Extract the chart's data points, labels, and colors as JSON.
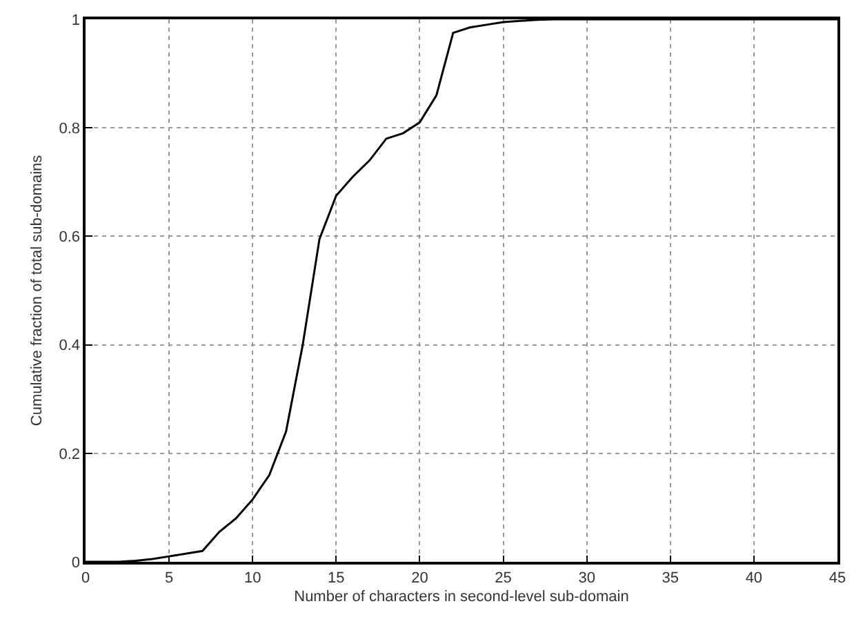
{
  "chart_data": {
    "type": "line",
    "xlabel": "Number of characters in second-level sub-domain",
    "ylabel": "Cumulative fraction of total sub-domains",
    "x": [
      0,
      1,
      2,
      3,
      4,
      5,
      6,
      7,
      8,
      9,
      10,
      11,
      12,
      13,
      14,
      15,
      16,
      17,
      18,
      19,
      20,
      21,
      22,
      23,
      24,
      25,
      26,
      27,
      28,
      30,
      35,
      40,
      45
    ],
    "series": [
      {
        "color": "#000000",
        "values": [
          0,
          0,
          0,
          0.002,
          0.005,
          0.01,
          0.015,
          0.02,
          0.055,
          0.08,
          0.115,
          0.16,
          0.24,
          0.4,
          0.595,
          0.675,
          0.71,
          0.74,
          0.78,
          0.79,
          0.81,
          0.86,
          0.975,
          0.985,
          0.99,
          0.995,
          0.997,
          0.999,
          1,
          1,
          1,
          1,
          1
        ]
      }
    ],
    "xlim": [
      0,
      45
    ],
    "xticks": [
      0,
      5,
      10,
      15,
      20,
      25,
      30,
      35,
      40,
      45
    ],
    "ylim": [
      0,
      1
    ],
    "yticks": [
      0,
      0.2,
      0.4,
      0.6,
      0.8,
      1
    ],
    "grid": true,
    "marker": "none",
    "line_style": "solid"
  }
}
